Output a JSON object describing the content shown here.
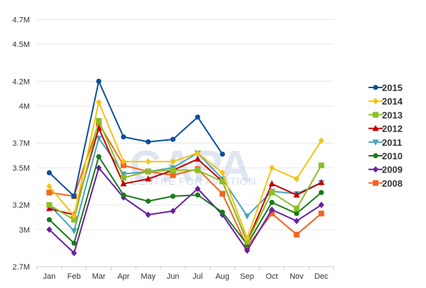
{
  "chart_data": {
    "type": "line",
    "title": "",
    "xlabel": "",
    "ylabel": "",
    "categories": [
      "Jan",
      "Feb",
      "Mar",
      "Apr",
      "May",
      "Jun",
      "Jul",
      "Aug",
      "Sep",
      "Oct",
      "Nov",
      "Dec"
    ],
    "ylim": [
      2700000,
      4800000
    ],
    "yticks": [
      {
        "value": 2700000,
        "label": "2.7M"
      },
      {
        "value": 3000000,
        "label": "3M"
      },
      {
        "value": 3200000,
        "label": "3.2M"
      },
      {
        "value": 3500000,
        "label": "3.5M"
      },
      {
        "value": 3700000,
        "label": "3.7M"
      },
      {
        "value": 4000000,
        "label": "4M"
      },
      {
        "value": 4200000,
        "label": "4.2M"
      },
      {
        "value": 4500000,
        "label": "4.5M"
      },
      {
        "value": 4700000,
        "label": "4.7M"
      }
    ],
    "grid": "horizontal",
    "legend_position": "right",
    "series": [
      {
        "name": "2015",
        "color": "#0a4f9c",
        "marker": "circle",
        "values": [
          3460000,
          3270000,
          4200000,
          3750000,
          3710000,
          3730000,
          3910000,
          3610000,
          null,
          null,
          null,
          null
        ]
      },
      {
        "name": "2014",
        "color": "#f5c211",
        "marker": "diamond",
        "values": [
          3350000,
          3110000,
          4030000,
          3550000,
          3550000,
          3550000,
          3620000,
          3460000,
          2930000,
          3500000,
          3410000,
          3720000
        ]
      },
      {
        "name": "2013",
        "color": "#8cbf26",
        "marker": "square",
        "values": [
          3200000,
          3080000,
          3880000,
          3420000,
          3470000,
          3480000,
          3480000,
          3390000,
          2900000,
          3300000,
          3170000,
          3520000
        ]
      },
      {
        "name": "2012",
        "color": "#c00000",
        "marker": "triangle-up",
        "values": [
          3170000,
          3120000,
          3820000,
          3370000,
          3410000,
          3480000,
          3570000,
          3390000,
          2900000,
          3370000,
          3280000,
          3380000
        ]
      },
      {
        "name": "2011",
        "color": "#4aa3bf",
        "marker": "triangle-down",
        "values": [
          3200000,
          2990000,
          3740000,
          3450000,
          3470000,
          3500000,
          3620000,
          3410000,
          3110000,
          3310000,
          3290000,
          3380000
        ]
      },
      {
        "name": "2010",
        "color": "#1a7a1a",
        "marker": "circle",
        "values": [
          3080000,
          2890000,
          3590000,
          3280000,
          3230000,
          3270000,
          3280000,
          3140000,
          2880000,
          3220000,
          3130000,
          3300000
        ]
      },
      {
        "name": "2009",
        "color": "#6a1fa0",
        "marker": "diamond",
        "values": [
          3000000,
          2810000,
          3500000,
          3260000,
          3120000,
          3150000,
          3330000,
          3120000,
          2830000,
          3160000,
          3070000,
          3200000
        ]
      },
      {
        "name": "2008",
        "color": "#f26522",
        "marker": "square",
        "values": [
          3300000,
          3270000,
          3860000,
          3520000,
          3470000,
          3440000,
          3490000,
          3290000,
          2860000,
          3130000,
          2960000,
          3130000
        ]
      }
    ]
  },
  "watermark": {
    "logo_text": "CAPA",
    "sub_text": "CENTRE FOR AVIATION"
  },
  "colors": {
    "grid": "#e6e6e6",
    "axis": "#cccccc",
    "watermark": "#c5d3e6"
  }
}
